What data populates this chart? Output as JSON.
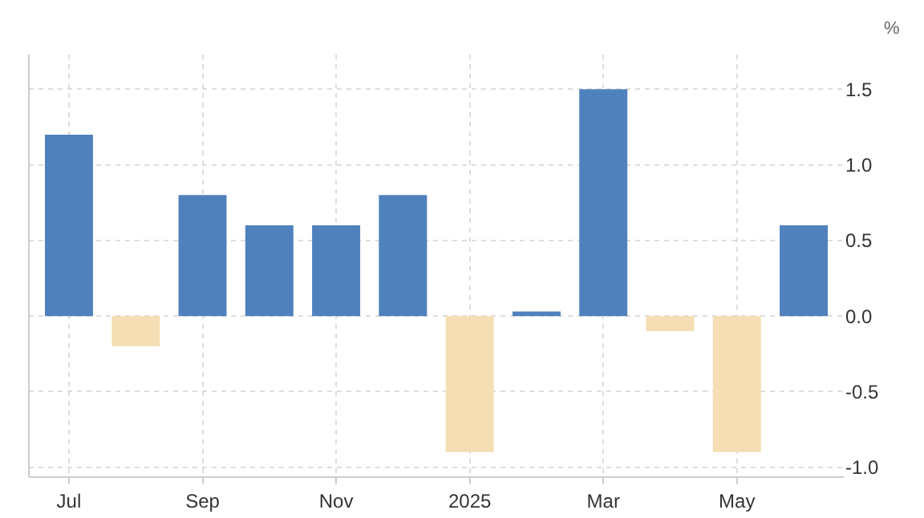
{
  "chart_data": {
    "type": "bar",
    "ylabel": "%",
    "categories": [
      "Jul",
      null,
      "Sep",
      null,
      "Nov",
      null,
      "2025",
      null,
      "Mar",
      null,
      "May",
      null
    ],
    "values": [
      1.2,
      -0.2,
      0.8,
      0.6,
      0.6,
      0.8,
      -0.9,
      0.03,
      1.5,
      -0.1,
      -0.9,
      0.6
    ],
    "colors": [
      "#4f81bd",
      "#f5deb3",
      "#4f81bd",
      "#4f81bd",
      "#4f81bd",
      "#4f81bd",
      "#f5deb3",
      "#4f81bd",
      "#4f81bd",
      "#f5deb3",
      "#f5deb3",
      "#4f81bd"
    ],
    "ylim": [
      -1.06,
      1.73
    ],
    "yticks": [
      {
        "value": -1,
        "label": "-1.0"
      },
      {
        "value": -0.5,
        "label": "-0.5"
      },
      {
        "value": 0,
        "label": "0.0"
      },
      {
        "value": 0.5,
        "label": "0.5"
      },
      {
        "value": 1,
        "label": "1.0"
      },
      {
        "value": 1.5,
        "label": "1.5"
      }
    ],
    "grid": true
  }
}
